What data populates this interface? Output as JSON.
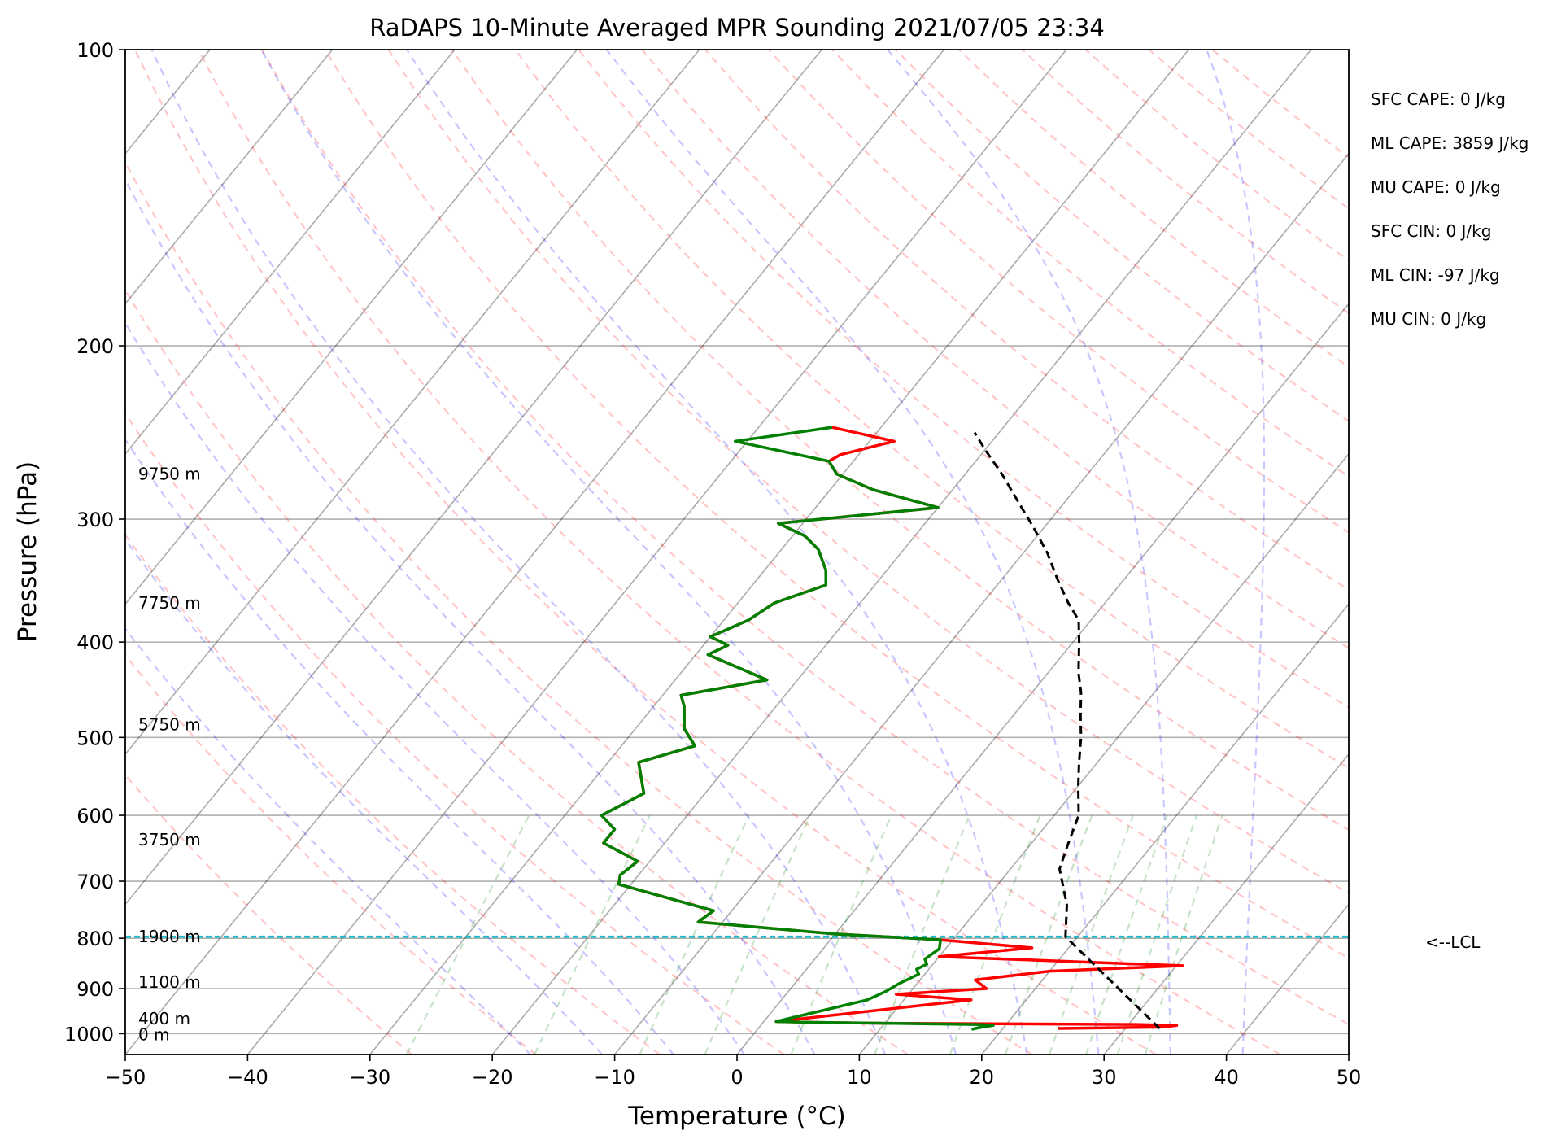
{
  "chart_data": {
    "type": "line",
    "subtype": "skew-t log-p sounding",
    "title": "RaDAPS 10-Minute Averaged MPR Sounding 2021/07/05 23:34",
    "xlabel": "Temperature (°C)",
    "ylabel": "Pressure (hPa)",
    "xlim": [
      -50,
      50
    ],
    "ylim": [
      1050,
      100
    ],
    "y_scale": "log",
    "grid": true,
    "x_ticks": [
      -50,
      -40,
      -30,
      -20,
      -10,
      0,
      10,
      20,
      30,
      40,
      50
    ],
    "x_tick_labels": [
      "−50",
      "−40",
      "−30",
      "−20",
      "−10",
      "0",
      "10",
      "20",
      "30",
      "40",
      "50"
    ],
    "y_ticks": [
      100,
      200,
      300,
      400,
      500,
      600,
      700,
      800,
      900,
      1000
    ],
    "y_tick_labels": [
      "100",
      "200",
      "300",
      "400",
      "500",
      "600",
      "700",
      "800",
      "900",
      "1000"
    ],
    "height_labels": [
      {
        "text": "9750 m",
        "p": 270
      },
      {
        "text": "7750 m",
        "p": 365
      },
      {
        "text": "5750 m",
        "p": 485
      },
      {
        "text": "3750 m",
        "p": 635
      },
      {
        "text": "1900 m",
        "p": 797
      },
      {
        "text": "1100 m",
        "p": 886
      },
      {
        "text": "400 m",
        "p": 966
      },
      {
        "text": "0 m",
        "p": 1002
      }
    ],
    "indices": [
      "SFC CAPE: 0 J/kg",
      "ML CAPE: 3859 J/kg",
      "MU CAPE: 0 J/kg",
      "SFC CIN: 0 J/kg",
      "ML CIN: -97 J/kg",
      "MU CIN: 0 J/kg"
    ],
    "lcl": {
      "label": "<--LCL",
      "pressure": 797,
      "color": "#17becf"
    },
    "colors": {
      "temperature": "#ff0000",
      "dewpoint": "#008000",
      "parcel": "#000000",
      "isotherm": "#000000",
      "dry_adiabat": "#ff0000",
      "moist_adiabat": "#0000ff",
      "mixing_ratio": "#008000"
    },
    "series": [
      {
        "key": "temperature",
        "points": [
          [
            24.5,
            988
          ],
          [
            33,
            985
          ],
          [
            34,
            981
          ],
          [
            31,
            979
          ],
          [
            10,
            976
          ],
          [
            4,
            974
          ],
          [
            1,
            972
          ],
          [
            15.5,
            924
          ],
          [
            9,
            912
          ],
          [
            16,
            900
          ],
          [
            14.5,
            882
          ],
          [
            20,
            864
          ],
          [
            30.5,
            853
          ],
          [
            10,
            835
          ],
          [
            17,
            818
          ],
          [
            9,
            803
          ],
          [
            0,
            792
          ],
          [
            -12,
            770
          ],
          [
            -11.5,
            750
          ],
          [
            -21,
            705
          ],
          [
            -21.5,
            690
          ],
          [
            -21,
            668
          ],
          [
            -25,
            640
          ],
          [
            -25,
            620
          ],
          [
            -27,
            600
          ],
          [
            -25,
            570
          ],
          [
            -27.5,
            530
          ],
          [
            -24,
            510
          ],
          [
            -26,
            490
          ],
          [
            -27.5,
            465
          ],
          [
            -28.5,
            453
          ],
          [
            -22.5,
            437
          ],
          [
            -29,
            412
          ],
          [
            -28,
            403
          ],
          [
            -30,
            395
          ],
          [
            -28,
            380
          ],
          [
            -27,
            365
          ],
          [
            -24,
            350
          ],
          [
            -25,
            338
          ],
          [
            -27,
            322
          ],
          [
            -29,
            312
          ],
          [
            -32,
            303
          ],
          [
            -20,
            292
          ],
          [
            -26.5,
            280
          ],
          [
            -30.5,
            270
          ],
          [
            -32,
            262
          ],
          [
            -31.5,
            258
          ],
          [
            -28,
            250
          ],
          [
            -34,
            242
          ]
        ]
      },
      {
        "key": "dewpoint",
        "points": [
          [
            17.5,
            990
          ],
          [
            18,
            986
          ],
          [
            19,
            981
          ],
          [
            18,
            979
          ],
          [
            10,
            976
          ],
          [
            4,
            974
          ],
          [
            1,
            972
          ],
          [
            7,
            924
          ],
          [
            7.5,
            915
          ],
          [
            8,
            905
          ],
          [
            8.5,
            890
          ],
          [
            9,
            880
          ],
          [
            9.5,
            870
          ],
          [
            9,
            860
          ],
          [
            9.5,
            850
          ],
          [
            9,
            840
          ],
          [
            9.5,
            820
          ],
          [
            9,
            803
          ],
          [
            0,
            792
          ],
          [
            -12,
            770
          ],
          [
            -11.5,
            750
          ],
          [
            -21,
            705
          ],
          [
            -21.5,
            690
          ],
          [
            -21,
            668
          ],
          [
            -25,
            640
          ],
          [
            -25,
            620
          ],
          [
            -27,
            600
          ],
          [
            -25,
            570
          ],
          [
            -27.5,
            530
          ],
          [
            -24,
            510
          ],
          [
            -26,
            490
          ],
          [
            -27.5,
            465
          ],
          [
            -28.5,
            453
          ],
          [
            -22.5,
            437
          ],
          [
            -29,
            412
          ],
          [
            -28,
            403
          ],
          [
            -30,
            395
          ],
          [
            -28,
            380
          ],
          [
            -27,
            365
          ],
          [
            -24,
            350
          ],
          [
            -25,
            338
          ],
          [
            -27,
            322
          ],
          [
            -29,
            312
          ],
          [
            -32,
            303
          ],
          [
            -20,
            292
          ],
          [
            -26.5,
            280
          ],
          [
            -30.5,
            270
          ],
          [
            -32,
            262
          ],
          [
            -41,
            250
          ],
          [
            -34,
            242
          ]
        ]
      },
      {
        "key": "parcel",
        "points": [
          [
            32.8,
            988
          ],
          [
            19,
            797
          ],
          [
            17,
            740
          ],
          [
            14,
            680
          ],
          [
            13,
            640
          ],
          [
            12,
            600
          ],
          [
            10,
            560
          ],
          [
            8.5,
            530
          ],
          [
            7,
            500
          ],
          [
            5.5,
            475
          ],
          [
            4,
            450
          ],
          [
            2.5,
            430
          ],
          [
            0.5,
            400
          ],
          [
            -1,
            380
          ],
          [
            -3,
            365
          ],
          [
            -5.5,
            345
          ],
          [
            -8,
            325
          ],
          [
            -11,
            305
          ],
          [
            -13.5,
            290
          ],
          [
            -17,
            270
          ],
          [
            -20,
            255
          ],
          [
            -22,
            245
          ]
        ]
      }
    ]
  }
}
